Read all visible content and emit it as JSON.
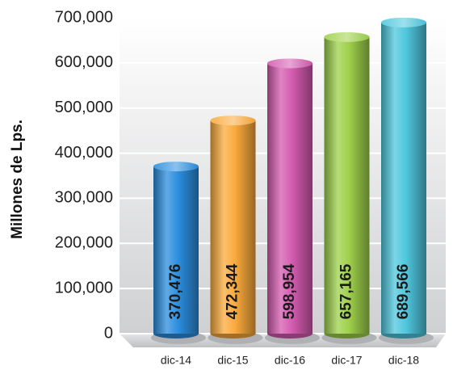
{
  "chart_data": {
    "type": "bar",
    "y_label": "Millones de Lps.",
    "categories": [
      "dic-14",
      "dic-15",
      "dic-16",
      "dic-17",
      "dic-18"
    ],
    "values": [
      370476,
      472344,
      598954,
      657165,
      689566
    ],
    "value_labels": [
      "370,476",
      "472,344",
      "598,954",
      "657,165",
      "689,566"
    ],
    "colors": [
      "#2b8ede",
      "#fbaa3c",
      "#d45bb0",
      "#9ed14b",
      "#4fc7de"
    ],
    "ylim": [
      0,
      700000
    ],
    "yticks": [
      0,
      {
        "value": 100000,
        "label": "100,000"
      },
      {
        "value": 200000,
        "label": "200,000"
      },
      {
        "value": 300000,
        "label": "300,000"
      },
      {
        "value": 400000,
        "label": "400,000"
      },
      {
        "value": 500000,
        "label": "500,000"
      },
      {
        "value": 600000,
        "label": "600,000"
      },
      {
        "value": 700000,
        "label": "700,000"
      }
    ],
    "grid": true
  }
}
